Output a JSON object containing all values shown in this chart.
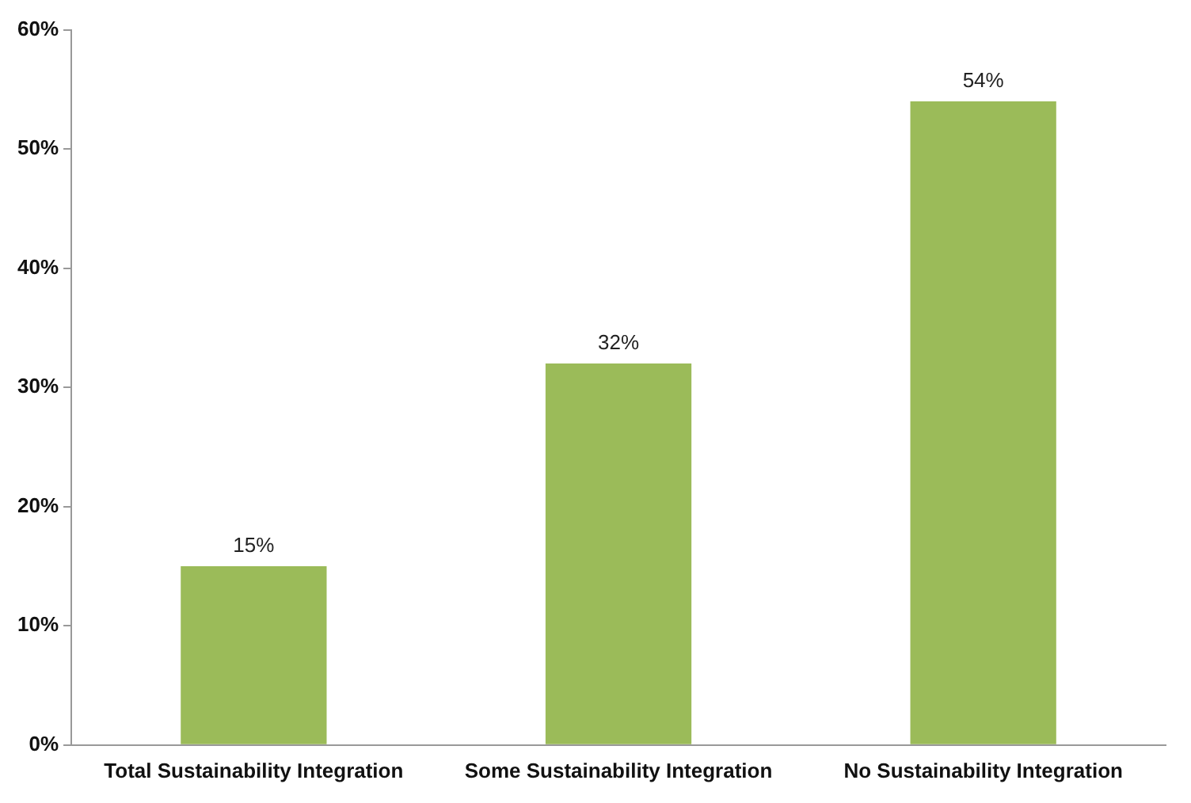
{
  "chart_data": {
    "type": "bar",
    "categories": [
      "Total Sustainability Integration",
      "Some Sustainability Integration",
      "No Sustainability Integration"
    ],
    "values": [
      15,
      32,
      54
    ],
    "value_labels": [
      "15%",
      "32%",
      "54%"
    ],
    "color": "#9bbb59",
    "ylim": [
      0,
      60
    ],
    "yticks": [
      {
        "value": 0,
        "label": "0%"
      },
      {
        "value": 10,
        "label": "10%"
      },
      {
        "value": 20,
        "label": "20%"
      },
      {
        "value": 30,
        "label": "30%"
      },
      {
        "value": 40,
        "label": "40%"
      },
      {
        "value": 50,
        "label": "50%"
      },
      {
        "value": 60,
        "label": "60%"
      }
    ],
    "grid": false,
    "legend": false
  }
}
